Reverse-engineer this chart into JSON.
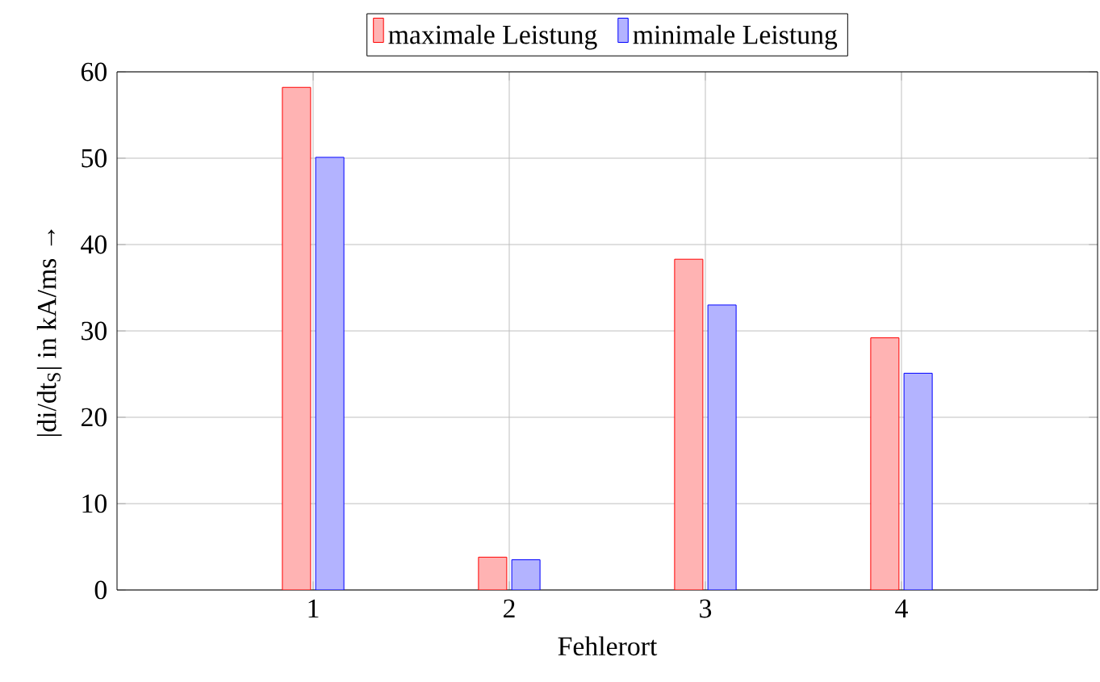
{
  "chart_data": {
    "type": "bar",
    "xlabel": "Fehlerort",
    "ylabel": "|di/dt$_{S}$| in kA/ms →",
    "x": [
      1,
      2,
      3,
      4
    ],
    "series": [
      {
        "name": "maximale Leistung",
        "color": "#ffb3b3",
        "values": [
          58.2,
          3.8,
          38.3,
          29.2
        ]
      },
      {
        "name": "minimale Leistung",
        "color": "#b3b3ff",
        "values": [
          50.1,
          3.5,
          33.0,
          25.1
        ]
      }
    ],
    "xlim": [
      0,
      5
    ],
    "ylim": [
      0,
      60
    ],
    "xticks": [
      1,
      2,
      3,
      4
    ],
    "yticks": [
      0,
      10,
      20,
      30,
      40,
      50,
      60
    ],
    "grid": true,
    "legend": "top"
  }
}
